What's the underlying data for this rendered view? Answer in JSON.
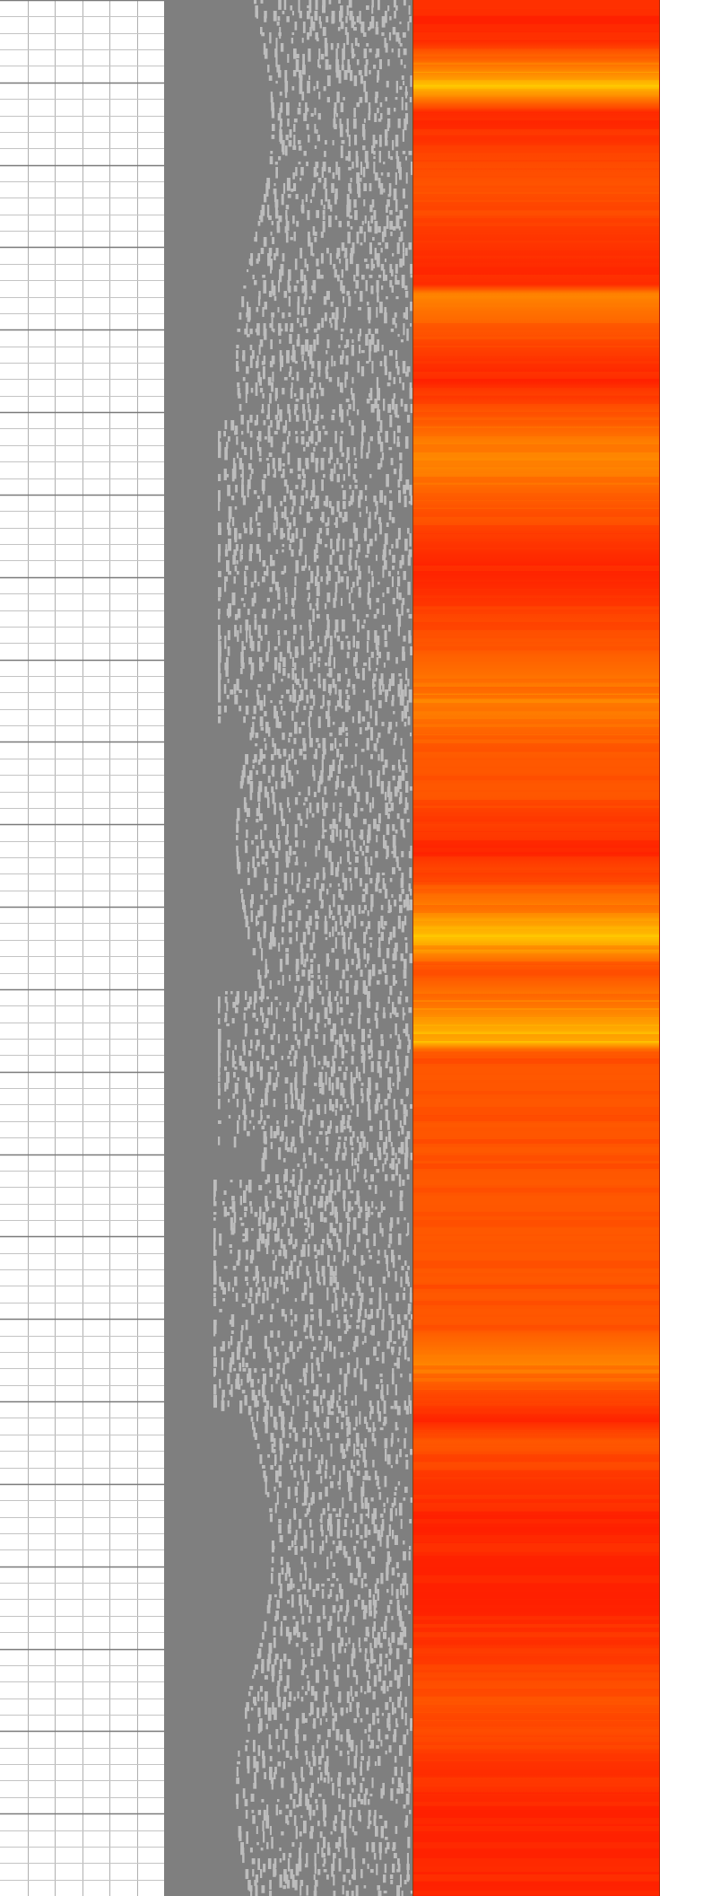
{
  "chart_data": {
    "type": "heatmap",
    "title": "",
    "xlabel": "",
    "ylabel": "",
    "tracks": [
      {
        "kind": "depth-grid"
      },
      {
        "kind": "acoustic-image",
        "background": "#7f7f7f",
        "feature_color": "#bdbdbd"
      },
      {
        "kind": "heatmap",
        "colormap": [
          "#ff2200",
          "#ff5500",
          "#ff8800",
          "#ffcc00",
          "#ffff00"
        ]
      }
    ],
    "heat_profile_depth_fraction": [
      0.0,
      0.02,
      0.045,
      0.06,
      0.1,
      0.15,
      0.155,
      0.2,
      0.235,
      0.245,
      0.3,
      0.34,
      0.37,
      0.4,
      0.42,
      0.45,
      0.48,
      0.495,
      0.51,
      0.515,
      0.55,
      0.555,
      0.6,
      0.65,
      0.7,
      0.72,
      0.75,
      0.76,
      0.8,
      0.85,
      0.9,
      0.95,
      1.0
    ],
    "heat_profile_intensity": [
      0.15,
      0.2,
      0.9,
      0.2,
      0.25,
      0.2,
      0.55,
      0.2,
      0.5,
      0.55,
      0.2,
      0.25,
      0.7,
      0.35,
      0.25,
      0.2,
      0.6,
      0.95,
      0.3,
      0.25,
      0.85,
      0.3,
      0.25,
      0.3,
      0.3,
      0.5,
      0.2,
      0.25,
      0.2,
      0.2,
      0.25,
      0.2,
      0.15
    ],
    "grid_columns": 6,
    "grid_major_rows": 23,
    "grid_minor_per_major": 5
  }
}
